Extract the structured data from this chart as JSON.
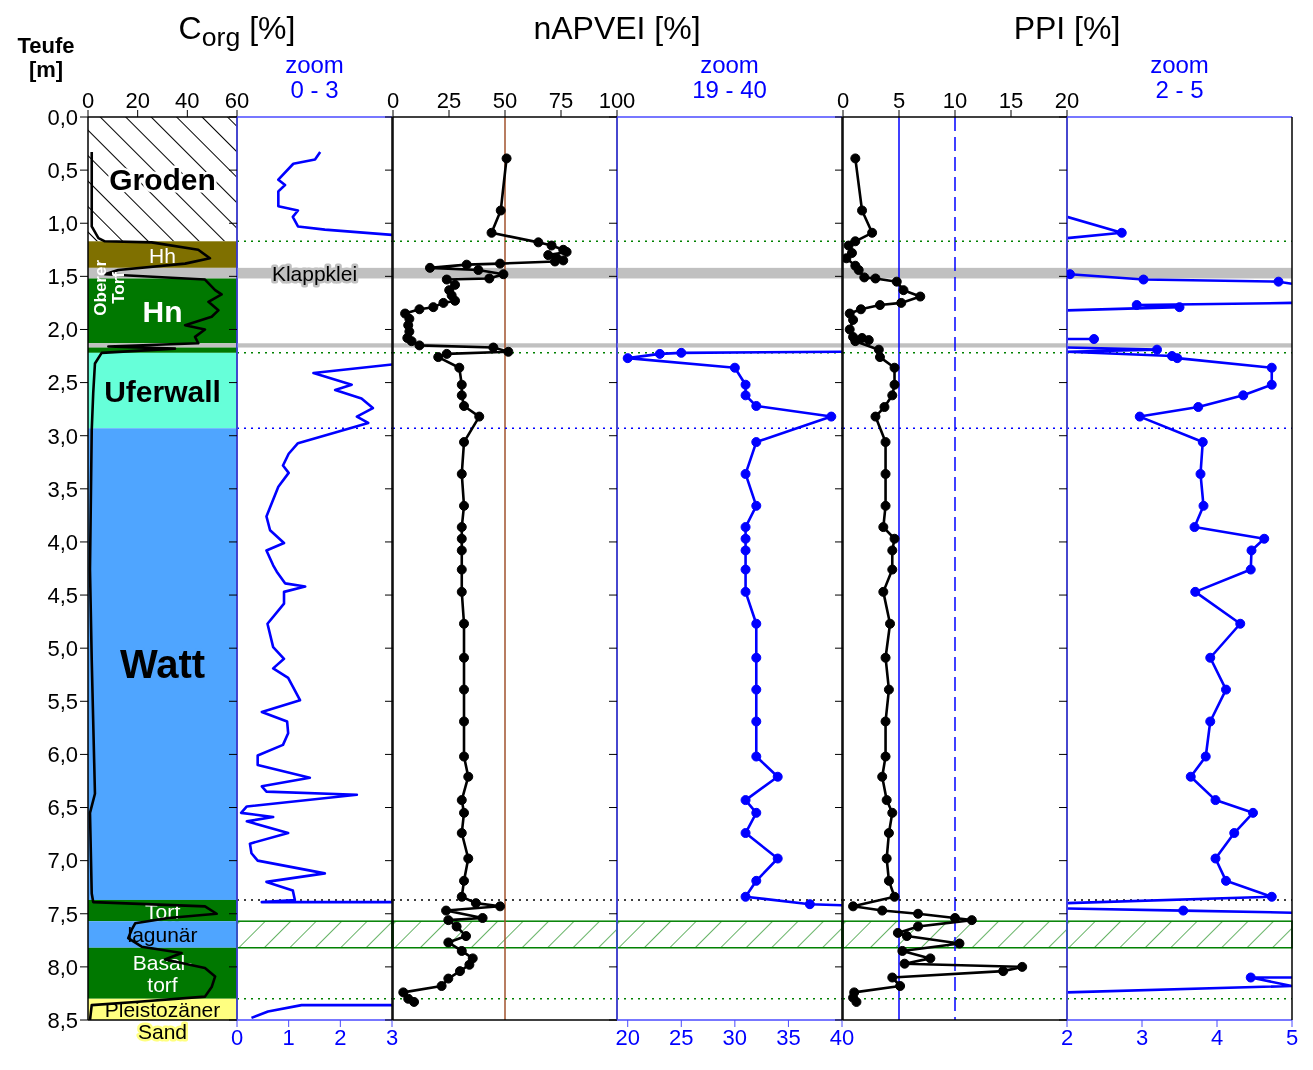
{
  "chart_data": [
    {
      "type": "line",
      "title": "C$_{org}$ [%]",
      "ylabel": "Teufe [m]",
      "xlim": [
        0,
        60
      ],
      "xticks": [
        0,
        20,
        40,
        60
      ],
      "ylim": [
        8.5,
        0
      ],
      "yticks": [
        {
          "value": 0,
          "label": "0,0"
        },
        {
          "value": 0.5,
          "label": "0,5"
        },
        {
          "value": 1,
          "label": "1,0"
        },
        {
          "value": 1.5,
          "label": "1,5"
        },
        {
          "value": 2,
          "label": "2,0"
        },
        {
          "value": 2.5,
          "label": "2,5"
        },
        {
          "value": 3,
          "label": "3,0"
        },
        {
          "value": 3.5,
          "label": "3,5"
        },
        {
          "value": 4,
          "label": "4,0"
        },
        {
          "value": 4.5,
          "label": "4,5"
        },
        {
          "value": 5,
          "label": "5,0"
        },
        {
          "value": 5.5,
          "label": "5,5"
        },
        {
          "value": 6,
          "label": "6,0"
        },
        {
          "value": 6.5,
          "label": "6,5"
        },
        {
          "value": 7,
          "label": "7,0"
        },
        {
          "value": 7.5,
          "label": "7,5"
        },
        {
          "value": 8,
          "label": "8,0"
        },
        {
          "value": 8.5,
          "label": "8,5"
        }
      ],
      "marker": "none",
      "series": [
        {
          "color": "#000000",
          "x": [
            1.5,
            1.5,
            4.2,
            6.8,
            25.6,
            44.4,
            49.1,
            39.1,
            12.2,
            6.8,
            47.1,
            51.2,
            53.8,
            48.5,
            52.5,
            49.8,
            39.1,
            47.1,
            43.1,
            44.4,
            8.2,
            35.0,
            5.5,
            2.8,
            2.1,
            1.5,
            0.8,
            1.5,
            2.8,
            0.8,
            1.5,
            2.1,
            47.1,
            51.8,
            32.4,
            19.0,
            17.6,
            16.2,
            21.6,
            37.7,
            31.0,
            47.1,
            51.2,
            49.8,
            47.1,
            19.0,
            1.5,
            0.8
          ],
          "values": [
            0.33,
            1.03,
            1.14,
            1.17,
            1.18,
            1.25,
            1.33,
            1.38,
            1.44,
            1.48,
            1.53,
            1.63,
            1.67,
            1.74,
            1.82,
            1.88,
            1.96,
            2.0,
            2.07,
            2.13,
            2.16,
            2.18,
            2.22,
            2.32,
            2.6,
            2.95,
            4.26,
            5.11,
            6.37,
            6.55,
            7.31,
            7.39,
            7.43,
            7.5,
            7.54,
            7.59,
            7.65,
            7.73,
            7.81,
            7.87,
            7.93,
            8.01,
            8.09,
            8.19,
            8.28,
            8.33,
            8.36,
            8.5
          ]
        }
      ],
      "bands": [
        {
          "axis": "y",
          "from": 0,
          "to": 1.17,
          "label": "Groden"
        },
        {
          "axis": "y",
          "from": 1.17,
          "to": 1.42,
          "label": "Hh",
          "color": "#7f7000"
        },
        {
          "axis": "y",
          "from": 1.42,
          "to": 1.52,
          "color": "#c0c0c0"
        },
        {
          "axis": "y",
          "from": 1.52,
          "to": 2.13,
          "label": "Hn",
          "color": "#007800"
        },
        {
          "axis": "y",
          "from": 2.13,
          "to": 2.17,
          "color": "#c0c0c0"
        },
        {
          "axis": "y",
          "from": 2.17,
          "to": 2.22,
          "color": "#007800"
        },
        {
          "axis": "y",
          "from": 2.22,
          "to": 2.93,
          "label": "Uferwall",
          "color": "#66ffd9"
        },
        {
          "axis": "y",
          "from": 2.93,
          "to": 7.37,
          "label": "Watt",
          "color": "#4fa5ff"
        },
        {
          "axis": "y",
          "from": 7.37,
          "to": 7.57,
          "label": "Torf",
          "color": "#007800"
        },
        {
          "axis": "y",
          "from": 7.57,
          "to": 7.82,
          "label": "lagunär",
          "color": "#4fa5ff"
        },
        {
          "axis": "y",
          "from": 7.82,
          "to": 8.3,
          "label": "Basal-torf",
          "color": "#007800"
        },
        {
          "axis": "y",
          "from": 8.3,
          "to": 8.5,
          "label": "Pleistozäner Sand",
          "color": "#ffff80"
        }
      ],
      "annotations": [
        "Oberer Torf"
      ]
    },
    {
      "type": "line",
      "title": "zoom 0 - 3",
      "xlim": [
        0,
        3
      ],
      "xticks": [
        0,
        1,
        2,
        3
      ],
      "ylim": [
        8.5,
        0
      ],
      "tick_labels": "x",
      "yticks": [
        0,
        0.5,
        1,
        1.5,
        2,
        2.5,
        3,
        3.5,
        4,
        4.5,
        5,
        5.5,
        6,
        6.5,
        7,
        7.5,
        8,
        8.5
      ],
      "marker": "none",
      "series": [
        {
          "color": "#0000ff",
          "x": [
            1.61,
            1.51,
            1.09,
            0.8,
            0.93,
            0.8,
            0.8,
            1.18,
            1.08,
            1.18,
            1.7,
            3,
            null,
            3,
            1.48,
            2.22,
            1.9,
            2.41,
            2.63,
            2.32,
            2.54,
            1.18,
            1.0,
            0.89,
            1.0,
            0.8,
            0.57,
            0.64,
            0.91,
            0.57,
            0.7,
            0.77,
            0.93,
            1.32,
            0.91,
            0.91,
            0.59,
            0.7,
            0.91,
            0.7,
            0.99,
            1.22,
            0.48,
            0.97,
            0.99,
            0.89,
            0.4,
            0.4,
            1.41,
            0.48,
            0.57,
            2.32,
            0.19,
            0.08,
            0.7,
            0.19,
            0.99,
            0.25,
            0.28,
            0.4,
            1.7,
            0.57,
            1.08,
            1.12,
            0.48,
            3,
            null,
            3,
            1.25,
            0.6,
            0.28
          ],
          "values": [
            0.33,
            0.4,
            0.44,
            0.59,
            0.64,
            0.7,
            0.84,
            0.88,
            0.94,
            1.03,
            1.06,
            1.11,
            null,
            2.33,
            2.41,
            2.52,
            2.57,
            2.65,
            2.74,
            2.82,
            2.88,
            3.07,
            3.17,
            3.28,
            3.35,
            3.48,
            3.76,
            3.89,
            4.01,
            4.08,
            4.22,
            4.28,
            4.39,
            4.42,
            4.47,
            4.58,
            4.77,
            4.99,
            5.1,
            5.19,
            5.28,
            5.49,
            5.6,
            5.69,
            5.8,
            5.91,
            6.01,
            6.1,
            6.22,
            6.3,
            6.35,
            6.38,
            6.49,
            6.55,
            6.59,
            6.63,
            6.74,
            6.84,
            6.93,
            7.0,
            7.12,
            7.2,
            7.28,
            7.37,
            7.39,
            7.39,
            null,
            8.36,
            8.36,
            8.42,
            8.48
          ]
        }
      ],
      "bands": [
        {
          "axis": "y",
          "from": 1.42,
          "to": 1.52,
          "label": "Klappklei",
          "color": "#c0c0c0"
        },
        {
          "axis": "y",
          "from": 2.13,
          "to": 2.17,
          "color": "#c0c0c0"
        },
        {
          "axis": "y",
          "from": 7.57,
          "to": 7.82,
          "color": "#008000"
        }
      ],
      "ref_lines": [
        {
          "axis": "y",
          "value": 1.17,
          "color": "#008000",
          "line_style": "dotted"
        },
        {
          "axis": "y",
          "value": 2.22,
          "color": "#008000",
          "line_style": "dotted"
        },
        {
          "axis": "y",
          "value": 2.93,
          "color": "#0000ff",
          "line_style": "dotted"
        },
        {
          "axis": "y",
          "value": 7.37,
          "color": "#000000",
          "line_style": "dotted"
        },
        {
          "axis": "y",
          "value": 8.3,
          "color": "#008000",
          "line_style": "dotted"
        }
      ]
    },
    {
      "type": "line",
      "title": "nAPVEI [%]",
      "xlim": [
        0,
        100
      ],
      "xticks": [
        0,
        25,
        50,
        75,
        100
      ],
      "ylim": [
        8.5,
        0
      ],
      "tick_labels": "x",
      "yticks": [
        0,
        0.5,
        1,
        1.5,
        2,
        2.5,
        3,
        3.5,
        4,
        4.5,
        5,
        5.5,
        6,
        6.5,
        7,
        7.5,
        8,
        8.5
      ],
      "marker": "circle",
      "series": [
        {
          "color": "#000000",
          "x": [
            50.7,
            48.1,
            44.0,
            64.9,
            70.8,
            76.0,
            77.5,
            69.3,
            73.1,
            76.0,
            72.3,
            47.8,
            32.9,
            16.5,
            38.1,
            49.3,
            43.0,
            24.0,
            27.7,
            25.1,
            26.2,
            27.7,
            22.5,
            18.0,
            11.8,
            5.4,
            7.3,
            6.8,
            7.3,
            6.4,
            8.3,
            11.8,
            44.8,
            51.5,
            24.0,
            20.2,
            29.6,
            30.7,
            30.7,
            31.7,
            38.5,
            31.7,
            30.7,
            31.7,
            30.7,
            30.7,
            30.7,
            30.7,
            30.7,
            31.7,
            31.7,
            31.7,
            31.7,
            31.7,
            33.6,
            30.7,
            31.7,
            30.7,
            33.6,
            31.7,
            30.7,
            37.0,
            47.8,
            23.7,
            40.0,
            24.7,
            28.4,
            32.6,
            24.7,
            30.7,
            35.6,
            34.1,
            29.9,
            24.7,
            21.7,
            4.6,
            6.8,
            9.4
          ],
          "values": [
            0.39,
            0.88,
            1.09,
            1.18,
            1.21,
            1.25,
            1.27,
            1.3,
            1.33,
            1.35,
            1.36,
            1.38,
            1.39,
            1.42,
            1.44,
            1.48,
            1.52,
            1.53,
            1.58,
            1.63,
            1.68,
            1.73,
            1.75,
            1.79,
            1.81,
            1.85,
            1.9,
            1.96,
            2.02,
            2.08,
            2.11,
            2.15,
            2.17,
            2.21,
            2.23,
            2.26,
            2.36,
            2.52,
            2.62,
            2.72,
            2.82,
            3.06,
            3.36,
            3.66,
            3.86,
            3.97,
            4.08,
            4.26,
            4.47,
            4.77,
            5.09,
            5.39,
            5.69,
            6.02,
            6.21,
            6.43,
            6.55,
            6.74,
            6.98,
            7.19,
            7.34,
            7.4,
            7.43,
            7.47,
            7.54,
            7.56,
            7.62,
            7.71,
            7.77,
            7.85,
            7.92,
            7.98,
            8.04,
            8.11,
            8.18,
            8.24,
            8.3,
            8.33
          ]
        }
      ],
      "bands": [
        {
          "axis": "y",
          "from": 1.42,
          "to": 1.52,
          "color": "#c0c0c0"
        },
        {
          "axis": "y",
          "from": 2.13,
          "to": 2.17,
          "color": "#c0c0c0"
        },
        {
          "axis": "y",
          "from": 7.57,
          "to": 7.82,
          "color": "#008000"
        }
      ],
      "ref_lines": [
        {
          "axis": "x",
          "value": 50,
          "color": "#a0522d"
        },
        {
          "axis": "y",
          "value": 1.17,
          "color": "#008000",
          "line_style": "dotted"
        },
        {
          "axis": "y",
          "value": 2.22,
          "color": "#008000",
          "line_style": "dotted"
        },
        {
          "axis": "y",
          "value": 2.93,
          "color": "#0000ff",
          "line_style": "dotted"
        },
        {
          "axis": "y",
          "value": 7.37,
          "color": "#000000",
          "line_style": "dotted"
        },
        {
          "axis": "y",
          "value": 8.3,
          "color": "#008000",
          "line_style": "dotted"
        }
      ]
    },
    {
      "type": "line",
      "title": "zoom 19 - 40",
      "xlim": [
        19,
        40
      ],
      "xticks": [
        20,
        25,
        30,
        35,
        40
      ],
      "ylim": [
        8.5,
        0
      ],
      "tick_labels": "x",
      "yticks": [
        0,
        0.5,
        1,
        1.5,
        2,
        2.5,
        3,
        3.5,
        4,
        4.5,
        5,
        5.5,
        6,
        6.5,
        7,
        7.5,
        8,
        8.5
      ],
      "marker": "circle",
      "series": [
        {
          "color": "#0000ff",
          "x": [
            40,
            25,
            23,
            20,
            30,
            31,
            31,
            32,
            39,
            32,
            31,
            32,
            31,
            31,
            31,
            31,
            31,
            32,
            32,
            32,
            32,
            32,
            34,
            31,
            32,
            31,
            34,
            32,
            31,
            37,
            40
          ],
          "values": [
            2.21,
            2.22,
            2.23,
            2.27,
            2.36,
            2.52,
            2.62,
            2.72,
            2.82,
            3.06,
            3.36,
            3.66,
            3.86,
            3.97,
            4.08,
            4.26,
            4.47,
            4.77,
            5.09,
            5.39,
            5.69,
            6.02,
            6.21,
            6.43,
            6.55,
            6.74,
            6.98,
            7.19,
            7.34,
            7.41,
            7.42
          ]
        }
      ],
      "bands": [
        {
          "axis": "y",
          "from": 1.42,
          "to": 1.52,
          "color": "#c0c0c0"
        },
        {
          "axis": "y",
          "from": 2.13,
          "to": 2.17,
          "color": "#c0c0c0"
        },
        {
          "axis": "y",
          "from": 7.57,
          "to": 7.82,
          "color": "#008000"
        }
      ],
      "ref_lines": [
        {
          "axis": "y",
          "value": 1.17,
          "color": "#008000",
          "line_style": "dotted"
        },
        {
          "axis": "y",
          "value": 2.22,
          "color": "#008000",
          "line_style": "dotted"
        },
        {
          "axis": "y",
          "value": 2.93,
          "color": "#0000ff",
          "line_style": "dotted"
        },
        {
          "axis": "y",
          "value": 7.37,
          "color": "#000000",
          "line_style": "dotted"
        },
        {
          "axis": "y",
          "value": 8.3,
          "color": "#008000",
          "line_style": "dotted"
        }
      ]
    },
    {
      "type": "line",
      "title": "PPI [%]",
      "xlim": [
        0,
        20
      ],
      "xticks": [
        0,
        5,
        10,
        15,
        20
      ],
      "ylim": [
        8.5,
        0
      ],
      "tick_labels": "x",
      "yticks": [
        0,
        0.5,
        1,
        1.5,
        2,
        2.5,
        3,
        3.5,
        4,
        4.5,
        5,
        5.5,
        6,
        6.5,
        7,
        7.5,
        8,
        8.5
      ],
      "marker": "circle",
      "series": [
        {
          "color": "#000000",
          "x": [
            1.1,
            1.7,
            2.6,
            1.1,
            0.5,
            0.8,
            0.3,
            1.1,
            1.4,
            1.9,
            2.9,
            4.8,
            5.4,
            6.9,
            5.2,
            3.3,
            1.6,
            0.6,
            0.9,
            0.6,
            0.9,
            1.7,
            2.3,
            1.1,
            3.2,
            3.3,
            4.6,
            4.6,
            4.4,
            3.7,
            2.9,
            3.8,
            3.8,
            3.8,
            3.6,
            4.6,
            4.4,
            4.4,
            3.6,
            4.2,
            3.8,
            4.1,
            3.8,
            3.8,
            3.5,
            3.9,
            4.4,
            4.1,
            3.9,
            4.1,
            4.6,
            0.9,
            3.5,
            6.7,
            10.0,
            11.5,
            6.7,
            4.9,
            5.7,
            10.4,
            5.3,
            7.8,
            5.5,
            16.0,
            14.3,
            4.4,
            5.1,
            1.0,
            0.9,
            1.2
          ],
          "values": [
            0.39,
            0.88,
            1.09,
            1.17,
            1.21,
            1.28,
            1.33,
            1.4,
            1.44,
            1.51,
            1.52,
            1.55,
            1.63,
            1.69,
            1.75,
            1.77,
            1.81,
            1.85,
            1.91,
            2.0,
            2.07,
            2.08,
            2.1,
            2.11,
            2.19,
            2.26,
            2.36,
            2.52,
            2.62,
            2.73,
            2.82,
            3.06,
            3.36,
            3.66,
            3.86,
            3.97,
            4.08,
            4.26,
            4.47,
            4.77,
            5.09,
            5.39,
            5.69,
            6.02,
            6.21,
            6.43,
            6.55,
            6.74,
            6.98,
            7.19,
            7.34,
            7.43,
            7.47,
            7.5,
            7.54,
            7.56,
            7.62,
            7.68,
            7.71,
            7.78,
            7.85,
            7.92,
            7.97,
            8.0,
            8.04,
            8.1,
            8.18,
            8.24,
            8.29,
            8.33
          ]
        }
      ],
      "bands": [
        {
          "axis": "y",
          "from": 1.42,
          "to": 1.52,
          "color": "#c0c0c0"
        },
        {
          "axis": "y",
          "from": 2.13,
          "to": 2.17,
          "color": "#c0c0c0"
        },
        {
          "axis": "y",
          "from": 7.57,
          "to": 7.82,
          "color": "#008000"
        }
      ],
      "ref_lines": [
        {
          "axis": "x",
          "value": 5,
          "color": "#0000ff"
        },
        {
          "axis": "x",
          "value": 10,
          "color": "#0000ff",
          "line_style": "dashed"
        },
        {
          "axis": "y",
          "value": 1.17,
          "color": "#008000",
          "line_style": "dotted"
        },
        {
          "axis": "y",
          "value": 2.22,
          "color": "#008000",
          "line_style": "dotted"
        },
        {
          "axis": "y",
          "value": 2.93,
          "color": "#0000ff",
          "line_style": "dotted"
        },
        {
          "axis": "y",
          "value": 7.37,
          "color": "#000000",
          "line_style": "dotted"
        },
        {
          "axis": "y",
          "value": 8.3,
          "color": "#008000",
          "line_style": "dotted"
        }
      ]
    },
    {
      "type": "line",
      "title": "zoom 2 - 5",
      "xlim": [
        2,
        5
      ],
      "xticks": [
        2,
        3,
        4,
        5
      ],
      "ylim": [
        8.5,
        0
      ],
      "tick_labels": "x",
      "yticks": [
        0,
        0.5,
        1,
        1.5,
        2,
        2.5,
        3,
        3.5,
        4,
        4.5,
        5,
        5.5,
        6,
        6.5,
        7,
        7.5,
        8,
        8.5
      ],
      "marker": "circle",
      "series": [
        {
          "color": "#0000ff",
          "x": [
            2.0,
            2.73,
            2.0,
            null,
            2.04,
            3.02,
            4.82,
            5.0,
            null,
            5.0,
            2.93,
            3.5,
            2.0,
            null,
            2.0,
            2.36,
            null,
            2.0,
            3.2,
            2.0,
            3.4,
            3.47,
            4.73,
            4.73,
            4.35,
            3.75,
            2.97,
            3.81,
            3.78,
            3.82,
            3.7,
            4.63,
            4.46,
            4.45,
            3.71,
            4.31,
            3.91,
            4.12,
            3.91,
            3.85,
            3.65,
            3.98,
            4.48,
            4.23,
            3.98,
            4.12,
            4.73,
            2.0,
            null,
            2.0,
            3.55,
            5.0,
            null,
            5.0,
            4.45,
            5.0,
            2.0
          ],
          "values": [
            0.94,
            1.09,
            1.14,
            null,
            1.48,
            1.53,
            1.55,
            1.57,
            null,
            1.75,
            1.77,
            1.79,
            1.82,
            null,
            2.09,
            2.09,
            null,
            2.17,
            2.19,
            2.21,
            2.25,
            2.27,
            2.36,
            2.52,
            2.62,
            2.73,
            2.82,
            3.06,
            3.36,
            3.66,
            3.86,
            3.97,
            4.08,
            4.26,
            4.47,
            4.77,
            5.09,
            5.39,
            5.69,
            6.02,
            6.21,
            6.43,
            6.55,
            6.74,
            6.98,
            7.19,
            7.34,
            7.4,
            null,
            7.45,
            7.47,
            7.49,
            null,
            8.1,
            8.1,
            8.18,
            8.24
          ]
        }
      ],
      "bands": [
        {
          "axis": "y",
          "from": 1.42,
          "to": 1.52,
          "color": "#c0c0c0"
        },
        {
          "axis": "y",
          "from": 2.13,
          "to": 2.17,
          "color": "#c0c0c0"
        },
        {
          "axis": "y",
          "from": 7.57,
          "to": 7.82,
          "color": "#008000"
        }
      ],
      "ref_lines": [
        {
          "axis": "y",
          "value": 1.17,
          "color": "#008000",
          "line_style": "dotted"
        },
        {
          "axis": "y",
          "value": 2.22,
          "color": "#008000",
          "line_style": "dotted"
        },
        {
          "axis": "y",
          "value": 2.93,
          "color": "#0000ff",
          "line_style": "dotted"
        },
        {
          "axis": "y",
          "value": 7.37,
          "color": "#000000",
          "line_style": "dotted"
        },
        {
          "axis": "y",
          "value": 8.3,
          "color": "#008000",
          "line_style": "dotted"
        }
      ]
    }
  ]
}
